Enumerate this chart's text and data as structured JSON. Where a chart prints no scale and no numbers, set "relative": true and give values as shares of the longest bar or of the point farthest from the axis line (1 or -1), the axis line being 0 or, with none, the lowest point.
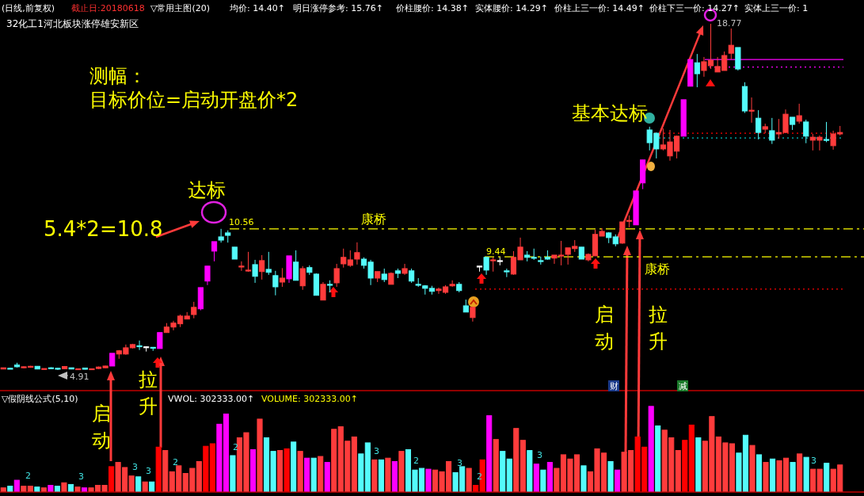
{
  "chart_data": [
    {
      "type": "candlestick",
      "subtitle": "32化工1河北板块涨停雄安新区",
      "categories": [
        null,
        null,
        null,
        null,
        null,
        null,
        null,
        null,
        null,
        null,
        null,
        null,
        null,
        null,
        null,
        null,
        null,
        null,
        null,
        null,
        null,
        null,
        null,
        null,
        null,
        null,
        null,
        null,
        null,
        null,
        null,
        null,
        null,
        null,
        null,
        null,
        null,
        null,
        null,
        null,
        null,
        null,
        null,
        null,
        null,
        null,
        null,
        null,
        null,
        null,
        null,
        null,
        null,
        null,
        null,
        null,
        null,
        null,
        null,
        null,
        null,
        null,
        null,
        null,
        null,
        null,
        null,
        null,
        null,
        null,
        null,
        null,
        null,
        null,
        null,
        null,
        null,
        null,
        null,
        null,
        null,
        null,
        null,
        null,
        null,
        null,
        null,
        null,
        null,
        null,
        null,
        null,
        null,
        null,
        null,
        null,
        null,
        null,
        null,
        null,
        null,
        null,
        null,
        null,
        null,
        null,
        null,
        null,
        null,
        null,
        null,
        null,
        null,
        null,
        null,
        null,
        null,
        null,
        null,
        null,
        null,
        null,
        null,
        null
      ],
      "ohlc": [
        [
          4.95,
          5.0,
          4.94,
          5.0
        ],
        [
          4.98,
          5.0,
          4.96,
          4.97
        ],
        [
          5.11,
          5.2,
          5.01,
          5.04
        ],
        [
          5.0,
          5.06,
          4.98,
          5.04
        ],
        [
          5.02,
          5.08,
          5.0,
          5.06
        ],
        [
          5.06,
          5.06,
          4.94,
          4.95
        ],
        [
          4.95,
          4.97,
          4.94,
          4.97
        ],
        [
          5.0,
          5.02,
          4.97,
          4.99
        ],
        [
          4.98,
          4.99,
          4.91,
          4.95
        ],
        [
          4.96,
          5.07,
          4.94,
          5.05
        ],
        [
          5.0,
          5.0,
          4.94,
          4.95
        ],
        [
          4.94,
          4.96,
          4.93,
          4.96
        ],
        [
          4.99,
          4.99,
          4.93,
          4.94
        ],
        [
          4.94,
          4.96,
          4.93,
          4.96
        ],
        [
          4.97,
          5.05,
          4.95,
          5.03
        ],
        [
          5.0,
          5.08,
          4.99,
          5.07
        ],
        [
          5.07,
          5.58,
          5.07,
          5.58
        ],
        [
          5.55,
          5.71,
          5.36,
          5.68
        ],
        [
          5.55,
          5.93,
          5.52,
          5.8
        ],
        [
          5.8,
          5.96,
          5.77,
          5.93
        ],
        [
          5.88,
          6.09,
          5.71,
          5.86
        ],
        [
          5.84,
          5.86,
          5.65,
          5.84
        ],
        [
          5.82,
          5.82,
          5.68,
          5.8
        ],
        [
          5.77,
          6.41,
          5.77,
          6.41
        ],
        [
          6.41,
          6.79,
          6.41,
          6.63
        ],
        [
          6.63,
          6.88,
          6.5,
          6.79
        ],
        [
          6.76,
          7.13,
          6.63,
          7.07
        ],
        [
          6.95,
          7.23,
          6.95,
          7.07
        ],
        [
          7.13,
          7.64,
          6.98,
          7.42
        ],
        [
          7.36,
          8.21,
          7.3,
          8.21
        ],
        [
          8.47,
          9.07,
          8.31,
          9.07
        ],
        [
          9.67,
          10.05,
          9.26,
          10.05
        ],
        [
          10.24,
          10.56,
          10.01,
          10.11
        ],
        [
          10.4,
          10.5,
          10.01,
          10.3
        ],
        [
          9.83,
          9.83,
          9.35,
          9.35
        ],
        [
          9.05,
          9.26,
          8.88,
          9.07
        ],
        [
          8.89,
          9.64,
          8.84,
          8.91
        ],
        [
          9.13,
          9.32,
          8.4,
          8.66
        ],
        [
          8.85,
          9.51,
          8.53,
          9.29
        ],
        [
          8.94,
          9.64,
          8.72,
          8.82
        ],
        [
          8.69,
          8.88,
          7.9,
          8.24
        ],
        [
          8.43,
          8.99,
          8.24,
          8.59
        ],
        [
          8.56,
          9.48,
          8.4,
          9.48
        ],
        [
          9.23,
          9.7,
          8.5,
          8.5
        ],
        [
          8.28,
          9.07,
          8.12,
          8.97
        ],
        [
          9.01,
          9.1,
          8.72,
          8.82
        ],
        [
          8.75,
          8.78,
          7.9,
          7.9
        ],
        [
          7.71,
          8.43,
          7.71,
          8.34
        ],
        [
          8.34,
          8.5,
          8.02,
          8.31
        ],
        [
          8.4,
          9.16,
          8.24,
          8.97
        ],
        [
          9.16,
          9.77,
          9.01,
          9.42
        ],
        [
          9.1,
          9.7,
          9.04,
          9.32
        ],
        [
          9.35,
          10.02,
          9.13,
          9.61
        ],
        [
          9.35,
          9.42,
          8.97,
          9.1
        ],
        [
          9.23,
          9.32,
          8.31,
          8.59
        ],
        [
          8.59,
          8.85,
          8.43,
          8.85
        ],
        [
          8.75,
          8.97,
          8.43,
          8.53
        ],
        [
          8.34,
          8.82,
          8.34,
          8.78
        ],
        [
          8.88,
          8.97,
          8.59,
          8.78
        ],
        [
          8.78,
          9.16,
          8.72,
          8.97
        ],
        [
          8.88,
          8.97,
          8.4,
          8.47
        ],
        [
          8.34,
          8.59,
          8.24,
          8.31
        ],
        [
          8.28,
          8.31,
          7.93,
          8.18
        ],
        [
          8.18,
          8.28,
          7.93,
          8.06
        ],
        [
          8.09,
          8.21,
          7.96,
          8.15
        ],
        [
          8.02,
          8.31,
          7.96,
          8.24
        ],
        [
          8.28,
          8.5,
          8.24,
          8.34
        ],
        [
          8.34,
          8.43,
          8.02,
          8.09
        ],
        [
          7.48,
          7.73,
          7.23,
          7.23
        ],
        [
          7.01,
          7.42,
          6.85,
          7.42
        ],
        [
          9.07,
          9.07,
          8.85,
          9.07
        ],
        [
          9.42,
          9.44,
          8.72,
          8.91
        ],
        [
          9.29,
          9.42,
          8.85,
          9.32
        ],
        [
          9.29,
          9.42,
          9.1,
          9.29
        ],
        [
          8.88,
          8.97,
          8.63,
          8.84
        ],
        [
          8.75,
          9.67,
          8.72,
          9.42
        ],
        [
          9.32,
          10.21,
          9.32,
          9.83
        ],
        [
          9.51,
          9.67,
          9.26,
          9.42
        ],
        [
          9.42,
          9.77,
          9.32,
          9.39
        ],
        [
          9.29,
          9.45,
          9.13,
          9.26
        ],
        [
          9.42,
          9.7,
          9.32,
          9.35
        ],
        [
          9.39,
          9.51,
          9.16,
          9.51
        ],
        [
          9.48,
          10.08,
          9.1,
          9.51
        ],
        [
          9.54,
          9.8,
          9.13,
          9.8
        ],
        [
          9.77,
          10.11,
          9.64,
          9.86
        ],
        [
          9.83,
          9.83,
          9.35,
          9.35
        ],
        [
          9.32,
          9.58,
          9.26,
          9.54
        ],
        [
          9.48,
          10.53,
          9.48,
          10.34
        ],
        [
          10.27,
          10.59,
          10.27,
          10.46
        ],
        [
          10.4,
          10.43,
          9.99,
          10.21
        ],
        [
          10.24,
          10.34,
          9.86,
          9.96
        ],
        [
          9.99,
          10.84,
          9.96,
          10.84
        ],
        [
          10.87,
          11.1,
          10.62,
          10.9
        ],
        [
          10.72,
          12.08,
          10.72,
          12.08
        ],
        [
          12.4,
          13.32,
          12.15,
          13.32
        ],
        [
          14.52,
          14.65,
          13.7,
          14.01
        ],
        [
          14.39,
          14.42,
          13.38,
          13.76
        ],
        [
          13.76,
          14.58,
          13.7,
          13.92
        ],
        [
          13.48,
          14.52,
          13.29,
          14.04
        ],
        [
          13.67,
          14.29,
          13.38,
          14.27
        ],
        [
          14.27,
          15.73,
          14.27,
          15.73
        ],
        [
          16.27,
          17.34,
          16.27,
          17.34
        ],
        [
          17.21,
          17.56,
          16.23,
          16.77
        ],
        [
          16.9,
          17.44,
          16.65,
          17.25
        ],
        [
          17.09,
          18.77,
          16.96,
          17.31
        ],
        [
          16.84,
          17.44,
          16.84,
          17.06
        ],
        [
          16.9,
          17.66,
          16.9,
          17.5
        ],
        [
          17.59,
          18.58,
          17.34,
          17.91
        ],
        [
          17.82,
          17.82,
          16.9,
          16.96
        ],
        [
          16.26,
          16.43,
          15.2,
          15.28
        ],
        [
          15.28,
          15.82,
          14.81,
          15.31
        ],
        [
          14.99,
          15.31,
          14.14,
          14.42
        ],
        [
          14.55,
          14.77,
          14.39,
          14.65
        ],
        [
          14.49,
          15.0,
          13.96,
          14.11
        ],
        [
          14.36,
          14.96,
          14.17,
          14.42
        ],
        [
          14.42,
          15.34,
          14.39,
          15.15
        ],
        [
          15.03,
          15.03,
          14.52,
          14.74
        ],
        [
          14.87,
          15.57,
          14.77,
          15.09
        ],
        [
          14.84,
          14.93,
          13.99,
          14.27
        ],
        [
          14.11,
          14.36,
          13.7,
          14.23
        ],
        [
          14.11,
          14.3,
          13.7,
          14.23
        ],
        [
          14.14,
          14.84,
          14.03,
          14.11
        ],
        [
          13.89,
          14.49,
          13.73,
          14.36
        ],
        [
          14.36,
          14.68,
          14.3,
          14.42
        ]
      ],
      "colors": [
        "#ff3c3c",
        "#54fcfc",
        "#54fcfc",
        "#ff3c3c",
        "#ff3c3c",
        "#54fcfc",
        "#ff3c3c",
        "#54fcfc",
        "#54fcfc",
        "#ff3c3c",
        "#54fcfc",
        "#ff3c3c",
        "#54fcfc",
        "#ff3c3c",
        "#ff3c3c",
        "#ff3c3c",
        "#ff00ff",
        "#ff3c3c",
        "#ff3c3c",
        "#ff3c3c",
        "#54fcfc",
        "#ffffff",
        "#54fcfc",
        "#ff00ff",
        "#ff3c3c",
        "#ff3c3c",
        "#ff3c3c",
        "#ff3c3c",
        "#ff3c3c",
        "#ff00ff",
        "#ff00ff",
        "#ff00ff",
        "#54fcfc",
        "#54fcfc",
        "#54fcfc",
        "#ff3c3c",
        "#ff3c3c",
        "#54fcfc",
        "#ff3c3c",
        "#54fcfc",
        "#54fcfc",
        "#ff3c3c",
        "#ff00ff",
        "#54fcfc",
        "#ff3c3c",
        "#54fcfc",
        "#54fcfc",
        "#ff3c3c",
        "#54fcfc",
        "#ff3c3c",
        "#ff3c3c",
        "#ff3c3c",
        "#ff3c3c",
        "#54fcfc",
        "#54fcfc",
        "#ff3c3c",
        "#54fcfc",
        "#ff3c3c",
        "#54fcfc",
        "#ff3c3c",
        "#54fcfc",
        "#54fcfc",
        "#54fcfc",
        "#54fcfc",
        "#ff3c3c",
        "#ff3c3c",
        "#ff3c3c",
        "#54fcfc",
        "#54fcfc",
        "#ff3c3c",
        "#ffffff",
        "#54fcfc",
        "#ff3c3c",
        "#ffffff",
        "#54fcfc",
        "#ff3c3c",
        "#ff3c3c",
        "#54fcfc",
        "#54fcfc",
        "#54fcfc",
        "#54fcfc",
        "#ff3c3c",
        "#ff3c3c",
        "#ff3c3c",
        "#ff3c3c",
        "#54fcfc",
        "#ff3c3c",
        "#ff3c3c",
        "#ff3c3c",
        "#54fcfc",
        "#54fcfc",
        "#ff3c3c",
        "#ff3c3c",
        "#ff00ff",
        "#ff00ff",
        "#54fcfc",
        "#54fcfc",
        "#ff3c3c",
        "#ff3c3c",
        "#ff3c3c",
        "#ff00ff",
        "#ff00ff",
        "#54fcfc",
        "#ff3c3c",
        "#ff3c3c",
        "#ff3c3c",
        "#ff3c3c",
        "#ff3c3c",
        "#54fcfc",
        "#54fcfc",
        "#ff3c3c",
        "#54fcfc",
        "#ff3c3c",
        "#54fcfc",
        "#ff3c3c",
        "#ff3c3c",
        "#54fcfc",
        "#ff3c3c",
        "#54fcfc",
        "#ff3c3c",
        "#ff3c3c",
        "#54fcfc",
        "#ff3c3c",
        "#ff3c3c"
      ],
      "ref_lines": [
        {
          "axis": "y",
          "value": 10.56,
          "label": "康桥",
          "color": "#ffff00",
          "line_style": "dashed"
        },
        {
          "axis": "y",
          "value": 9.44,
          "label": "康桥",
          "color": "#ffff00",
          "line_style": "dashed"
        },
        {
          "axis": "y",
          "value": 8.15,
          "color": "#ff0000",
          "line_style": "dotted"
        },
        {
          "axis": "y",
          "value": 14.39,
          "color": "#ff0000",
          "line_style": "dotted"
        },
        {
          "axis": "y",
          "value": 14.2,
          "color": "#00c0c0",
          "line_style": "dotted"
        },
        {
          "axis": "y",
          "value": 17.34,
          "color": "#ff00ff",
          "line_style": "solid"
        },
        {
          "axis": "y",
          "value": 17.04,
          "color": "#ff00ff",
          "line_style": "dotted"
        }
      ],
      "annotations": [
        "(日线,前复权)",
        "截止日:20180618",
        "▽常用主图(20)",
        "均价: 14.40↑",
        "明日涨停参考: 15.76↑",
        "价柱腰价: 14.38↑",
        "实体腰价: 14.29↑",
        "价柱上三一价: 14.49↑",
        "价柱下三一价: 14.27↑",
        "实体上三一价: 1",
        "测幅：",
        "目标价位=启动开盘价*2",
        "达标",
        "5.4*2=10.8",
        "10.56",
        "9.44",
        "基本达标",
        "18.77",
        "4.91",
        "启动",
        "拉升",
        "启动",
        "拉升",
        "财",
        "减"
      ]
    },
    {
      "type": "bar",
      "relative": true,
      "categories": [
        null,
        null,
        null,
        null,
        null,
        null,
        null,
        null,
        null,
        null,
        null,
        null,
        null,
        null,
        null,
        null,
        null,
        null,
        null,
        null,
        null,
        null,
        null,
        null,
        null,
        null,
        null,
        null,
        null,
        null,
        null,
        null,
        null,
        null,
        null,
        null,
        null,
        null,
        null,
        null,
        null,
        null,
        null,
        null,
        null,
        null,
        null,
        null,
        null,
        null,
        null,
        null,
        null,
        null,
        null,
        null,
        null,
        null,
        null,
        null,
        null,
        null,
        null,
        null,
        null,
        null,
        null,
        null,
        null,
        null,
        null,
        null,
        null,
        null,
        null,
        null,
        null,
        null,
        null,
        null,
        null,
        null,
        null,
        null,
        null,
        null,
        null,
        null,
        null,
        null,
        null,
        null,
        null,
        null,
        null,
        null,
        null,
        null,
        null,
        null,
        null,
        null,
        null,
        null,
        null,
        null,
        null,
        null,
        null,
        null,
        null,
        null,
        null,
        null,
        null,
        null,
        null,
        null,
        null,
        null,
        null,
        null,
        null,
        null,
        null
      ],
      "values": [
        0.04,
        0.06,
        0.13,
        0.06,
        0.06,
        0.05,
        0.04,
        0.07,
        0.06,
        0.1,
        0.08,
        0.05,
        0.04,
        0.04,
        0.07,
        0.07,
        0.29,
        0.34,
        0.28,
        0.18,
        0.17,
        0.11,
        0.11,
        0.52,
        0.48,
        0.23,
        0.3,
        0.21,
        0.27,
        0.35,
        0.53,
        0.56,
        0.79,
        0.91,
        0.42,
        0.63,
        0.69,
        0.49,
        0.85,
        0.63,
        0.47,
        0.48,
        0.5,
        0.58,
        0.47,
        0.39,
        0.39,
        0.41,
        0.34,
        0.73,
        0.76,
        0.59,
        0.64,
        0.44,
        0.57,
        0.37,
        0.37,
        0.39,
        0.35,
        0.47,
        0.49,
        0.25,
        0.27,
        0.26,
        0.25,
        0.23,
        0.35,
        0.22,
        0.29,
        0.27,
        0.07,
        0.37,
        0.89,
        0.61,
        0.47,
        0.38,
        0.74,
        0.6,
        0.48,
        0.32,
        0.25,
        0.34,
        0.27,
        0.43,
        0.38,
        0.43,
        0.3,
        0.23,
        0.5,
        0.45,
        0.35,
        0.25,
        0.46,
        0.48,
        0.64,
        0.52,
        1,
        0.77,
        0.72,
        0.63,
        0.48,
        0.6,
        0.78,
        0.63,
        0.59,
        0.88,
        0.64,
        0.57,
        0.56,
        0.45,
        0.66,
        0.54,
        0.43,
        0.34,
        0.38,
        0.36,
        0.39,
        0.34,
        0.44,
        0.4,
        0.26,
        0.26,
        0.33,
        0.26,
        0.31
      ],
      "colors": [
        "#ff3c3c",
        "#54fcfc",
        "#ff00ff",
        "#ff3c3c",
        "#ff3c3c",
        "#54fcfc",
        "#ff3c3c",
        "#ff00ff",
        "#54fcfc",
        "#ff3c3c",
        "#54fcfc",
        "#ff3c3c",
        "#ff00ff",
        "#ff3c3c",
        "#ff3c3c",
        "#ff3c3c",
        "#ff0000",
        "#ff3c3c",
        "#ff3c3c",
        "#ff3c3c",
        "#54fcfc",
        "#ff3c3c",
        "#54fcfc",
        "#ff0000",
        "#ff3c3c",
        "#ff3c3c",
        "#ff3c3c",
        "#ff3c3c",
        "#ff3c3c",
        "#ff3c3c",
        "#ff0000",
        "#ff0000",
        "#ff00ff",
        "#ff00ff",
        "#54fcfc",
        "#ff3c3c",
        "#ff3c3c",
        "#ff00ff",
        "#ff3c3c",
        "#54fcfc",
        "#54fcfc",
        "#ff3c3c",
        "#ff0000",
        "#54fcfc",
        "#ff3c3c",
        "#ff00ff",
        "#54fcfc",
        "#ff3c3c",
        "#ff00ff",
        "#ff3c3c",
        "#ff3c3c",
        "#ff3c3c",
        "#ff3c3c",
        "#54fcfc",
        "#54fcfc",
        "#ff3c3c",
        "#54fcfc",
        "#ff3c3c",
        "#ff00ff",
        "#ff3c3c",
        "#54fcfc",
        "#54fcfc",
        "#54fcfc",
        "#ff00ff",
        "#ff3c3c",
        "#ff3c3c",
        "#ff3c3c",
        "#54fcfc",
        "#54fcfc",
        "#ff3c3c",
        "#ff0000",
        "#ff0000",
        "#ff00ff",
        "#ff3c3c",
        "#54fcfc",
        "#54fcfc",
        "#ff3c3c",
        "#ff3c3c",
        "#54fcfc",
        "#ff00ff",
        "#54fcfc",
        "#ff00ff",
        "#ff3c3c",
        "#ff3c3c",
        "#ff3c3c",
        "#ff3c3c",
        "#54fcfc",
        "#ff3c3c",
        "#ff3c3c",
        "#ff3c3c",
        "#54fcfc",
        "#ff00ff",
        "#ff3c3c",
        "#ff3c3c",
        "#ff0000",
        "#ff0000",
        "#ff00ff",
        "#54fcfc",
        "#ff3c3c",
        "#ff3c3c",
        "#ff3c3c",
        "#ff0000",
        "#ff0000",
        "#54fcfc",
        "#ff3c3c",
        "#ff3c3c",
        "#ff3c3c",
        "#ff3c3c",
        "#ff3c3c",
        "#54fcfc",
        "#54fcfc",
        "#ff3c3c",
        "#54fcfc",
        "#ff3c3c",
        "#54fcfc",
        "#ff3c3c",
        "#ff3c3c",
        "#54fcfc",
        "#ff3c3c",
        "#54fcfc",
        "#ff3c3c",
        "#ff3c3c",
        "#54fcfc",
        "#ff3c3c",
        "#ff3c3c"
      ],
      "annotations": [
        "▽假阴线公式(5,10)",
        "VWOL: 302333.00↑",
        "VOLUME: 302333.00↑",
        "2",
        "3",
        "3",
        "3",
        "2",
        "2",
        "3",
        "2",
        "3",
        "2",
        "3",
        "3"
      ]
    }
  ]
}
